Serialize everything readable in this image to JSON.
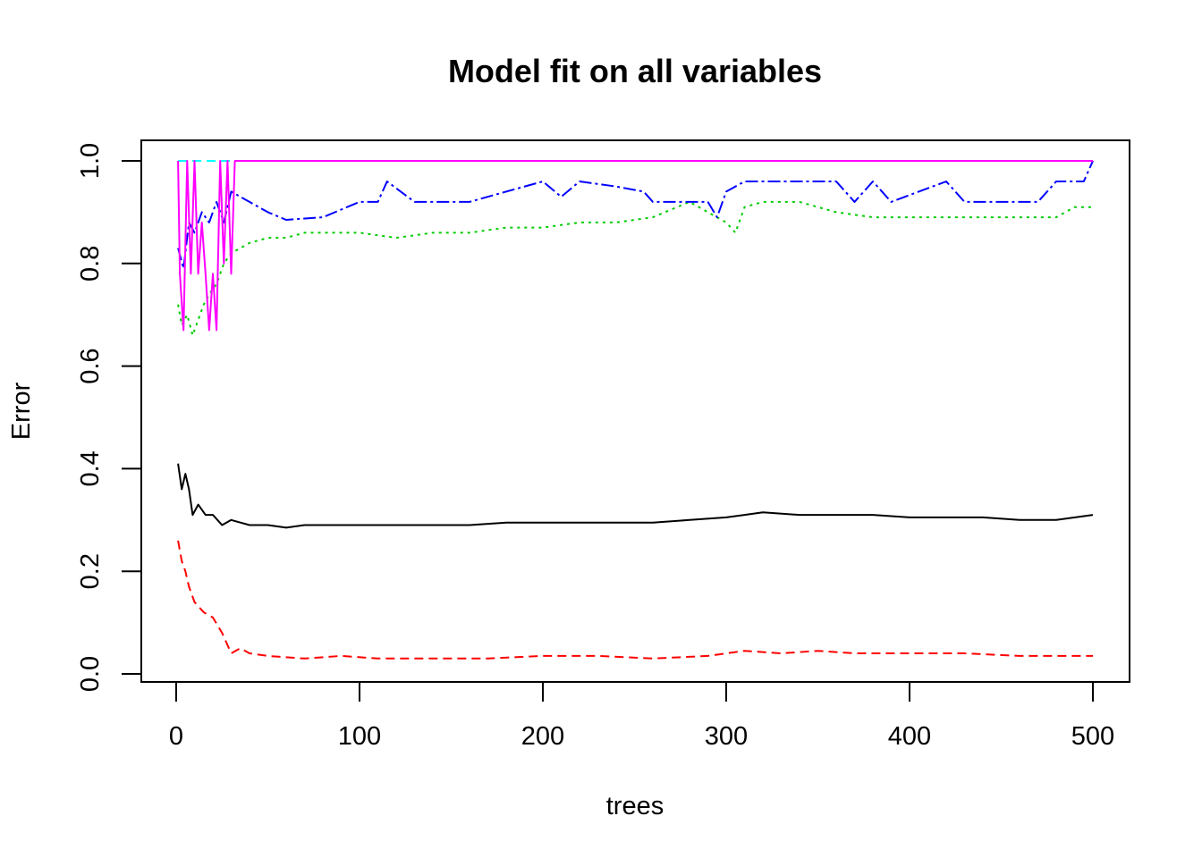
{
  "chart_data": {
    "type": "line",
    "title": "Model fit on all variables",
    "xlabel": "trees",
    "ylabel": "Error",
    "xlim": [
      0,
      500
    ],
    "ylim": [
      0.0,
      1.0
    ],
    "x_ticks": [
      "0",
      "100",
      "200",
      "300",
      "400",
      "500"
    ],
    "y_ticks": [
      "0.0",
      "0.2",
      "0.4",
      "0.6",
      "0.8",
      "1.0"
    ],
    "grid": false,
    "legend": "none",
    "series": [
      {
        "color": "#000000",
        "dash": "none",
        "points": [
          [
            1,
            0.41
          ],
          [
            3,
            0.36
          ],
          [
            5,
            0.39
          ],
          [
            7,
            0.36
          ],
          [
            9,
            0.31
          ],
          [
            12,
            0.33
          ],
          [
            16,
            0.31
          ],
          [
            20,
            0.31
          ],
          [
            25,
            0.29
          ],
          [
            30,
            0.3
          ],
          [
            35,
            0.295
          ],
          [
            40,
            0.29
          ],
          [
            50,
            0.29
          ],
          [
            60,
            0.285
          ],
          [
            70,
            0.29
          ],
          [
            80,
            0.29
          ],
          [
            100,
            0.29
          ],
          [
            120,
            0.29
          ],
          [
            140,
            0.29
          ],
          [
            160,
            0.29
          ],
          [
            180,
            0.295
          ],
          [
            200,
            0.295
          ],
          [
            220,
            0.295
          ],
          [
            240,
            0.295
          ],
          [
            260,
            0.295
          ],
          [
            280,
            0.3
          ],
          [
            300,
            0.305
          ],
          [
            310,
            0.31
          ],
          [
            320,
            0.315
          ],
          [
            340,
            0.31
          ],
          [
            360,
            0.31
          ],
          [
            380,
            0.31
          ],
          [
            400,
            0.305
          ],
          [
            420,
            0.305
          ],
          [
            440,
            0.305
          ],
          [
            460,
            0.3
          ],
          [
            480,
            0.3
          ],
          [
            500,
            0.31
          ]
        ]
      },
      {
        "color": "#ff0000",
        "dash": "10,6",
        "points": [
          [
            1,
            0.26
          ],
          [
            3,
            0.22
          ],
          [
            5,
            0.2
          ],
          [
            7,
            0.17
          ],
          [
            10,
            0.14
          ],
          [
            15,
            0.12
          ],
          [
            20,
            0.11
          ],
          [
            25,
            0.08
          ],
          [
            30,
            0.04
          ],
          [
            35,
            0.05
          ],
          [
            40,
            0.04
          ],
          [
            50,
            0.035
          ],
          [
            70,
            0.03
          ],
          [
            90,
            0.035
          ],
          [
            110,
            0.03
          ],
          [
            130,
            0.03
          ],
          [
            150,
            0.03
          ],
          [
            170,
            0.03
          ],
          [
            200,
            0.035
          ],
          [
            230,
            0.035
          ],
          [
            260,
            0.03
          ],
          [
            290,
            0.035
          ],
          [
            310,
            0.045
          ],
          [
            330,
            0.04
          ],
          [
            350,
            0.045
          ],
          [
            370,
            0.04
          ],
          [
            400,
            0.04
          ],
          [
            430,
            0.04
          ],
          [
            460,
            0.035
          ],
          [
            500,
            0.035
          ]
        ]
      },
      {
        "color": "#00cc00",
        "dash": "3,5",
        "points": [
          [
            1,
            0.72
          ],
          [
            3,
            0.68
          ],
          [
            6,
            0.7
          ],
          [
            9,
            0.66
          ],
          [
            12,
            0.69
          ],
          [
            15,
            0.72
          ],
          [
            18,
            0.74
          ],
          [
            22,
            0.76
          ],
          [
            26,
            0.8
          ],
          [
            30,
            0.82
          ],
          [
            35,
            0.83
          ],
          [
            40,
            0.84
          ],
          [
            50,
            0.85
          ],
          [
            60,
            0.85
          ],
          [
            70,
            0.86
          ],
          [
            80,
            0.86
          ],
          [
            100,
            0.86
          ],
          [
            120,
            0.85
          ],
          [
            140,
            0.86
          ],
          [
            160,
            0.86
          ],
          [
            180,
            0.87
          ],
          [
            200,
            0.87
          ],
          [
            220,
            0.88
          ],
          [
            240,
            0.88
          ],
          [
            260,
            0.89
          ],
          [
            280,
            0.92
          ],
          [
            290,
            0.9
          ],
          [
            300,
            0.88
          ],
          [
            305,
            0.86
          ],
          [
            310,
            0.91
          ],
          [
            320,
            0.92
          ],
          [
            340,
            0.92
          ],
          [
            350,
            0.91
          ],
          [
            360,
            0.9
          ],
          [
            380,
            0.89
          ],
          [
            400,
            0.89
          ],
          [
            420,
            0.89
          ],
          [
            440,
            0.89
          ],
          [
            460,
            0.89
          ],
          [
            480,
            0.89
          ],
          [
            490,
            0.91
          ],
          [
            500,
            0.91
          ]
        ]
      },
      {
        "color": "#0000ff",
        "dash": "14,4,3,4",
        "points": [
          [
            1,
            0.83
          ],
          [
            4,
            0.79
          ],
          [
            7,
            0.88
          ],
          [
            10,
            0.86
          ],
          [
            14,
            0.9
          ],
          [
            18,
            0.88
          ],
          [
            22,
            0.92
          ],
          [
            26,
            0.88
          ],
          [
            30,
            0.94
          ],
          [
            35,
            0.93
          ],
          [
            40,
            0.92
          ],
          [
            50,
            0.9
          ],
          [
            60,
            0.885
          ],
          [
            80,
            0.89
          ],
          [
            100,
            0.92
          ],
          [
            110,
            0.92
          ],
          [
            115,
            0.96
          ],
          [
            130,
            0.92
          ],
          [
            160,
            0.92
          ],
          [
            180,
            0.94
          ],
          [
            200,
            0.96
          ],
          [
            210,
            0.93
          ],
          [
            220,
            0.96
          ],
          [
            240,
            0.95
          ],
          [
            255,
            0.94
          ],
          [
            260,
            0.92
          ],
          [
            290,
            0.92
          ],
          [
            295,
            0.89
          ],
          [
            300,
            0.94
          ],
          [
            310,
            0.96
          ],
          [
            330,
            0.96
          ],
          [
            360,
            0.96
          ],
          [
            370,
            0.92
          ],
          [
            380,
            0.96
          ],
          [
            390,
            0.92
          ],
          [
            420,
            0.96
          ],
          [
            430,
            0.92
          ],
          [
            470,
            0.92
          ],
          [
            480,
            0.96
          ],
          [
            495,
            0.96
          ],
          [
            500,
            1.0
          ]
        ]
      },
      {
        "color": "#00ffff",
        "dash": "10,6",
        "points": [
          [
            1,
            1.0
          ],
          [
            30,
            1.0
          ]
        ]
      },
      {
        "color": "#ff00ff",
        "dash": "none",
        "points": [
          [
            1,
            1.0
          ],
          [
            2,
            0.78
          ],
          [
            4,
            0.67
          ],
          [
            6,
            1.0
          ],
          [
            8,
            0.78
          ],
          [
            10,
            1.0
          ],
          [
            12,
            0.78
          ],
          [
            14,
            0.88
          ],
          [
            16,
            0.78
          ],
          [
            18,
            0.67
          ],
          [
            20,
            0.78
          ],
          [
            22,
            0.67
          ],
          [
            24,
            1.0
          ],
          [
            26,
            0.8
          ],
          [
            28,
            1.0
          ],
          [
            30,
            0.78
          ],
          [
            32,
            1.0
          ],
          [
            35,
            1.0
          ],
          [
            500,
            1.0
          ]
        ]
      }
    ]
  }
}
